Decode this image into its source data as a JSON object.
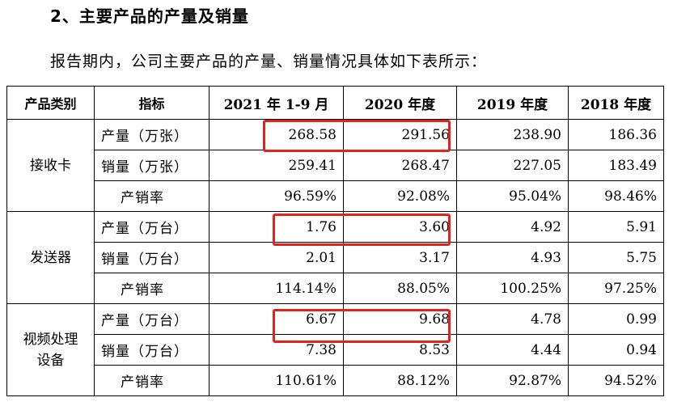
{
  "section_heading": "2、主要产品的产量及销量",
  "intro_text": "报告期内，公司主要产品的产量、销量情况具体如下表所示：",
  "table": {
    "headers": [
      "产品类别",
      "指标",
      "2021 年 1-9 月",
      "2020 年度",
      "2019 年度",
      "2018 年度"
    ],
    "groups": [
      {
        "category": "接收卡",
        "rows": [
          {
            "indicator": "产量（万张）",
            "values": [
              "268.58",
              "291.56",
              "238.90",
              "186.36"
            ]
          },
          {
            "indicator": "销量（万张）",
            "values": [
              "259.41",
              "268.47",
              "227.05",
              "183.49"
            ]
          },
          {
            "indicator": "产销率",
            "values": [
              "96.59%",
              "92.08%",
              "95.04%",
              "98.46%"
            ]
          }
        ]
      },
      {
        "category": "发送器",
        "rows": [
          {
            "indicator": "产量（万台）",
            "values": [
              "1.76",
              "3.60",
              "4.92",
              "5.91"
            ]
          },
          {
            "indicator": "销量（万台）",
            "values": [
              "2.01",
              "3.17",
              "4.93",
              "5.75"
            ]
          },
          {
            "indicator": "产销率",
            "values": [
              "114.14%",
              "88.05%",
              "100.25%",
              "97.25%"
            ]
          }
        ]
      },
      {
        "category": "视频处理设备",
        "rows": [
          {
            "indicator": "产量（万台）",
            "values": [
              "6.67",
              "9.68",
              "4.78",
              "0.99"
            ]
          },
          {
            "indicator": "销量（万台）",
            "values": [
              "7.38",
              "8.53",
              "4.44",
              "0.94"
            ]
          },
          {
            "indicator": "产销率",
            "values": [
              "110.61%",
              "88.12%",
              "92.87%",
              "94.52%"
            ]
          }
        ]
      }
    ]
  },
  "highlight_color": "#e0231b"
}
